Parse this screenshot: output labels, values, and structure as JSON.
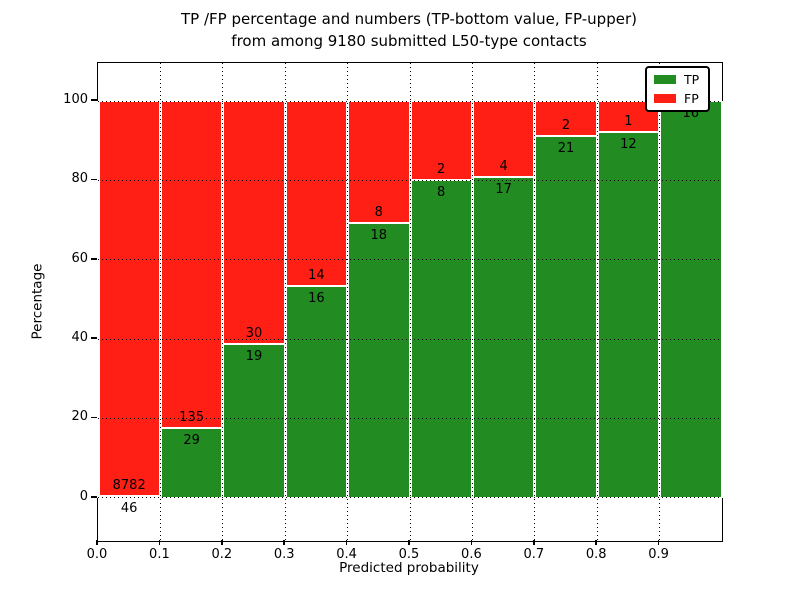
{
  "chart_data": {
    "type": "bar",
    "stacked": true,
    "units": "percent",
    "title_lines": [
      "TP /FP percentage and numbers (TP-bottom value, FP-upper)",
      "from among 9180 submitted L50-type contacts"
    ],
    "total_contacts": "9180",
    "xlabel": "Predicted probability",
    "ylabel": "Percentage",
    "x_tick_labels": [
      "0.0",
      "0.1",
      "0.2",
      "0.3",
      "0.4",
      "0.5",
      "0.6",
      "0.7",
      "0.8",
      "0.9"
    ],
    "y_tick_values": [
      "0",
      "20",
      "40",
      "60",
      "80",
      "100"
    ],
    "xlim": [
      0.0,
      1.0
    ],
    "ylim": [
      -10.9,
      109.6
    ],
    "grid": true,
    "bin_width": 0.1,
    "bins": [
      {
        "range": [
          0.0,
          0.1
        ],
        "tp": 46,
        "fp": 8782
      },
      {
        "range": [
          0.1,
          0.2
        ],
        "tp": 29,
        "fp": 135
      },
      {
        "range": [
          0.2,
          0.3
        ],
        "tp": 19,
        "fp": 30
      },
      {
        "range": [
          0.3,
          0.4
        ],
        "tp": 16,
        "fp": 14
      },
      {
        "range": [
          0.4,
          0.5
        ],
        "tp": 18,
        "fp": 8
      },
      {
        "range": [
          0.5,
          0.6
        ],
        "tp": 8,
        "fp": 2
      },
      {
        "range": [
          0.6,
          0.7
        ],
        "tp": 17,
        "fp": 4
      },
      {
        "range": [
          0.7,
          0.8
        ],
        "tp": 21,
        "fp": 2
      },
      {
        "range": [
          0.8,
          0.9
        ],
        "tp": 12,
        "fp": 1
      },
      {
        "range": [
          0.9,
          1.0
        ],
        "tp": 16,
        "fp": 0
      }
    ],
    "series": [
      {
        "name": "TP",
        "color": "#228b22"
      },
      {
        "name": "FP",
        "color": "#ff1f14"
      }
    ],
    "legend": {
      "position": "upper right"
    }
  }
}
